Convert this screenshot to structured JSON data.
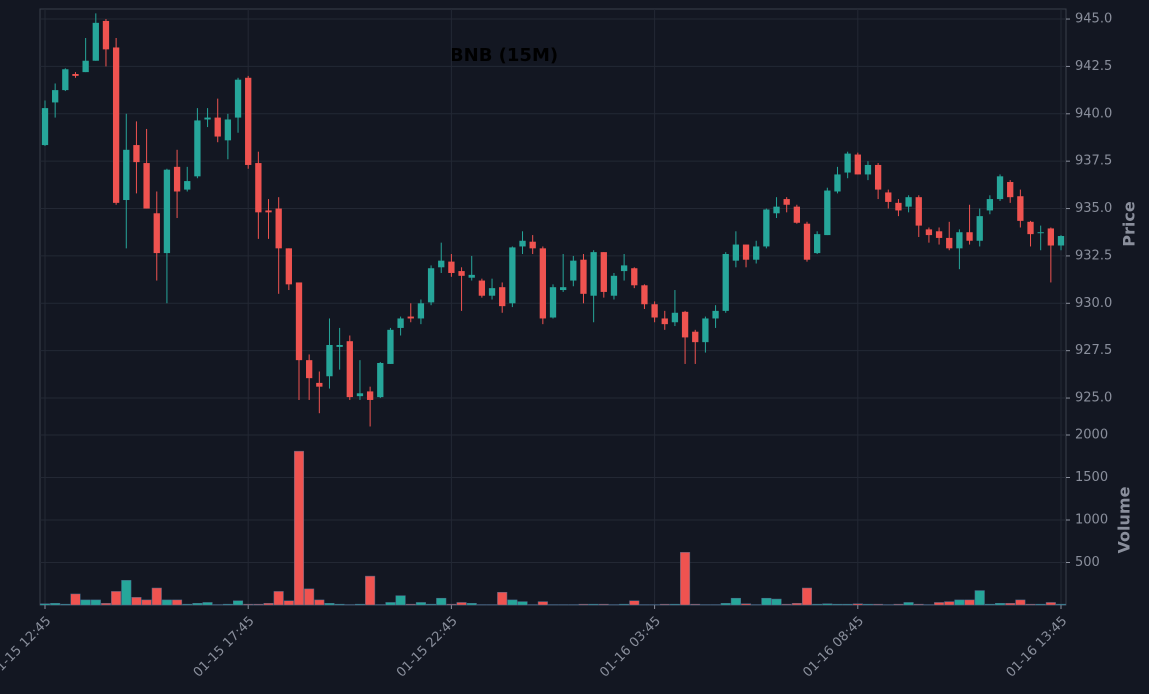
{
  "chart_data": {
    "type": "candlestick",
    "title": "BNB (15M)",
    "ylabel": "Price",
    "categories": [
      "01-15 12:45",
      null,
      null,
      null,
      null,
      null,
      null,
      null,
      null,
      null,
      null,
      null,
      null,
      null,
      null,
      null,
      null,
      null,
      null,
      null,
      "01-15 17:45",
      null,
      null,
      null,
      null,
      null,
      null,
      null,
      null,
      null,
      null,
      null,
      null,
      null,
      null,
      null,
      null,
      null,
      null,
      null,
      "01-15 22:45",
      null,
      null,
      null,
      null,
      null,
      null,
      null,
      null,
      null,
      null,
      null,
      null,
      null,
      null,
      null,
      null,
      null,
      null,
      null,
      "01-16 03:45",
      null,
      null,
      null,
      null,
      null,
      null,
      null,
      null,
      null,
      null,
      null,
      null,
      null,
      null,
      null,
      null,
      null,
      null,
      null,
      "01-16 08:45",
      null,
      null,
      null,
      null,
      null,
      null,
      null,
      null,
      null,
      null,
      null,
      null,
      null,
      null,
      null,
      null,
      null,
      null,
      null,
      "01-16 13:45"
    ],
    "open": [
      938.35,
      940.6,
      941.25,
      942.1,
      942.2,
      942.8,
      944.9,
      943.5,
      935.45,
      938.35,
      937.4,
      934.75,
      932.65,
      937.2,
      936.0,
      936.7,
      939.7,
      939.8,
      938.6,
      939.8,
      941.9,
      937.4,
      934.9,
      935.0,
      932.9,
      931.1,
      927.0,
      925.8,
      926.15,
      927.7,
      928.0,
      925.1,
      925.35,
      925.05,
      926.8,
      928.7,
      929.3,
      929.2,
      930.05,
      931.9,
      932.2,
      931.7,
      931.35,
      931.2,
      930.4,
      930.85,
      930.0,
      933.0,
      933.25,
      932.9,
      929.25,
      930.7,
      931.2,
      932.3,
      930.4,
      932.7,
      930.4,
      931.7,
      931.85,
      930.95,
      929.95,
      929.2,
      929.0,
      929.55,
      928.5,
      927.95,
      929.2,
      929.6,
      932.25,
      933.1,
      932.3,
      933.0,
      934.75,
      935.5,
      935.1,
      934.2,
      932.65,
      933.6,
      935.9,
      936.9,
      937.85,
      936.8,
      937.3,
      935.85,
      935.3,
      935.1,
      935.6,
      933.9,
      933.8,
      933.45,
      932.9,
      933.75,
      933.3,
      934.9,
      935.5,
      936.4,
      935.65,
      934.3,
      933.7,
      933.95,
      933.05
    ],
    "high": [
      940.7,
      941.6,
      942.4,
      942.2,
      944.0,
      945.3,
      945.0,
      944.0,
      940.0,
      939.6,
      939.2,
      935.9,
      937.1,
      938.1,
      937.2,
      940.3,
      940.3,
      940.8,
      940.0,
      941.9,
      942.0,
      938.0,
      935.5,
      935.6,
      932.9,
      931.1,
      927.3,
      926.4,
      929.2,
      928.7,
      928.3,
      927.0,
      925.6,
      926.9,
      928.7,
      929.3,
      930.0,
      930.2,
      932.0,
      933.2,
      932.6,
      931.9,
      932.5,
      931.3,
      931.3,
      931.1,
      933.0,
      933.8,
      933.6,
      933.0,
      931.0,
      932.6,
      932.5,
      932.6,
      932.8,
      932.7,
      931.6,
      932.6,
      931.9,
      931.0,
      930.1,
      929.6,
      930.7,
      929.6,
      928.6,
      929.3,
      929.9,
      932.7,
      933.8,
      933.1,
      933.3,
      935.0,
      935.6,
      935.6,
      935.2,
      934.3,
      933.8,
      936.1,
      937.2,
      938.0,
      937.95,
      937.5,
      937.4,
      936.0,
      935.5,
      935.7,
      935.7,
      934.0,
      934.0,
      934.3,
      933.9,
      935.2,
      935.0,
      935.7,
      936.8,
      936.5,
      936.0,
      934.35,
      934.1,
      934.0,
      933.6
    ],
    "low": [
      938.3,
      939.8,
      941.2,
      941.9,
      942.2,
      942.8,
      942.5,
      935.2,
      932.9,
      935.8,
      935.0,
      931.2,
      930.0,
      934.5,
      935.9,
      936.6,
      939.3,
      938.5,
      937.6,
      939.0,
      937.1,
      933.4,
      933.4,
      930.5,
      930.7,
      924.9,
      924.9,
      924.2,
      925.5,
      926.5,
      924.9,
      924.9,
      923.5,
      925.0,
      926.8,
      928.3,
      929.0,
      928.9,
      929.9,
      931.6,
      931.4,
      929.6,
      931.2,
      930.3,
      930.2,
      929.5,
      929.8,
      932.6,
      932.6,
      928.9,
      929.2,
      930.6,
      930.9,
      930.0,
      929.0,
      930.3,
      930.2,
      931.2,
      930.8,
      929.7,
      929.0,
      928.6,
      928.8,
      926.8,
      926.8,
      927.4,
      928.7,
      929.5,
      931.9,
      931.9,
      932.1,
      932.9,
      934.5,
      934.8,
      934.2,
      932.2,
      932.6,
      933.6,
      935.8,
      936.6,
      936.8,
      936.5,
      935.5,
      935.0,
      934.6,
      934.8,
      933.5,
      933.2,
      933.1,
      932.8,
      931.8,
      933.1,
      933.0,
      934.7,
      935.4,
      935.3,
      934.0,
      933.0,
      932.8,
      931.1,
      932.8
    ],
    "close": [
      940.3,
      941.25,
      942.35,
      942.0,
      942.8,
      944.8,
      943.4,
      935.3,
      938.1,
      937.45,
      935.0,
      932.65,
      937.05,
      935.9,
      936.45,
      939.65,
      939.8,
      938.8,
      939.7,
      941.8,
      937.3,
      934.8,
      934.8,
      932.9,
      931.0,
      927.0,
      926.05,
      925.6,
      927.8,
      927.8,
      925.05,
      925.25,
      924.9,
      926.85,
      928.6,
      929.2,
      929.2,
      930.0,
      931.85,
      932.25,
      931.6,
      931.45,
      931.5,
      930.4,
      930.8,
      929.85,
      932.95,
      933.3,
      932.9,
      929.2,
      930.85,
      930.85,
      932.25,
      930.5,
      932.7,
      930.6,
      931.45,
      932.0,
      930.95,
      929.95,
      929.25,
      928.9,
      929.5,
      928.2,
      927.95,
      929.2,
      929.6,
      932.6,
      933.1,
      932.3,
      933.0,
      934.95,
      935.1,
      935.2,
      934.25,
      932.3,
      933.65,
      935.95,
      936.8,
      937.9,
      936.8,
      937.3,
      936.0,
      935.35,
      934.9,
      935.6,
      934.1,
      933.6,
      933.45,
      932.9,
      933.75,
      933.3,
      934.6,
      935.5,
      936.7,
      935.6,
      934.35,
      933.65,
      933.75,
      933.05,
      933.55
    ],
    "up_color": "#26a69a",
    "down_color": "#ef5350",
    "ylim": [
      923.05,
      945.53
    ],
    "yticks": [
      {
        "value": 925,
        "label": "925.0"
      },
      {
        "value": 927.5,
        "label": "927.5"
      },
      {
        "value": 930,
        "label": "930.0"
      },
      {
        "value": 932.5,
        "label": "932.5"
      },
      {
        "value": 935,
        "label": "935.0"
      },
      {
        "value": 937.5,
        "label": "937.5"
      },
      {
        "value": 940,
        "label": "940.0"
      },
      {
        "value": 942.5,
        "label": "942.5"
      },
      {
        "value": 945,
        "label": "945.0"
      }
    ],
    "grid": true,
    "volume": {
      "label": "Volume",
      "ylim": [
        0,
        2000
      ],
      "yticks": [
        500,
        1000,
        1500,
        2000
      ],
      "values": [
        15,
        20,
        10,
        130,
        60,
        60,
        20,
        160,
        290,
        90,
        60,
        200,
        60,
        60,
        10,
        20,
        30,
        5,
        10,
        50,
        10,
        10,
        20,
        160,
        50,
        1810,
        190,
        60,
        20,
        10,
        5,
        10,
        340,
        5,
        30,
        110,
        10,
        30,
        10,
        80,
        10,
        30,
        20,
        5,
        5,
        150,
        60,
        40,
        5,
        40,
        5,
        5,
        5,
        10,
        10,
        10,
        5,
        10,
        50,
        5,
        5,
        10,
        10,
        620,
        10,
        5,
        5,
        20,
        80,
        15,
        5,
        80,
        70,
        10,
        20,
        200,
        10,
        15,
        10,
        10,
        15,
        10,
        10,
        5,
        10,
        30,
        10,
        5,
        30,
        40,
        60,
        60,
        170,
        10,
        20,
        20,
        60,
        10,
        10,
        30,
        10
      ]
    }
  }
}
